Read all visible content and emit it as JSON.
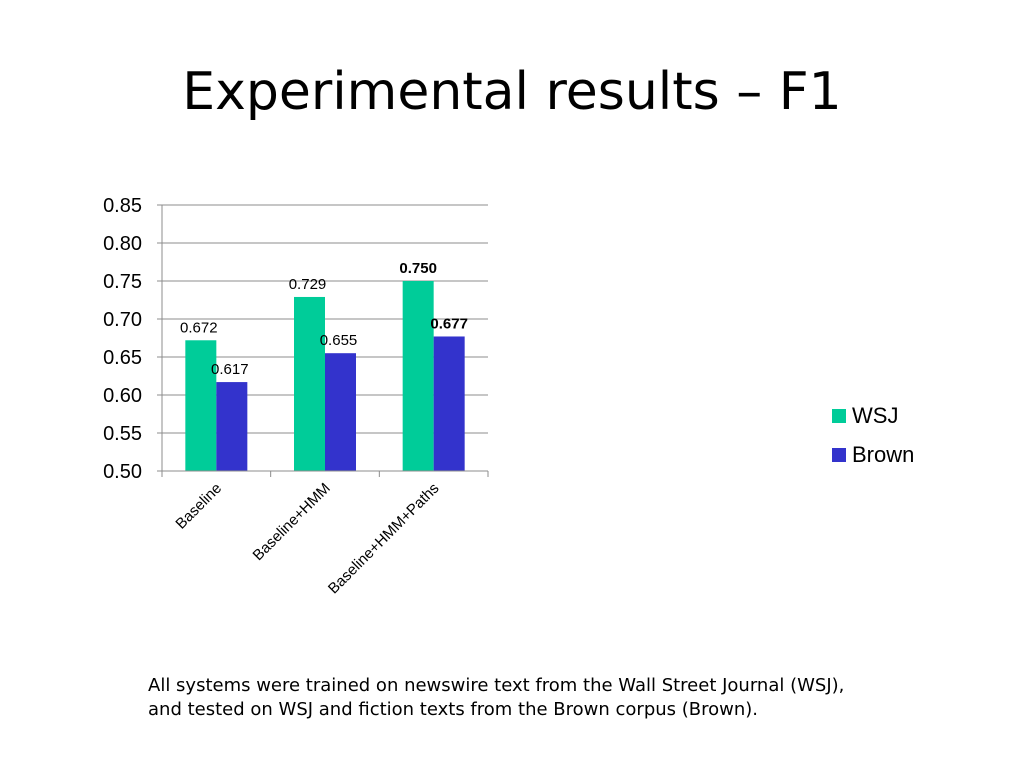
{
  "slide": {
    "title": "Experimental results – F1",
    "caption": "All systems were trained on newswire text from the Wall Street Journal (WSJ), and tested on WSJ and fiction texts from the Brown corpus (Brown)."
  },
  "chart_data": {
    "type": "bar",
    "title": "",
    "xlabel": "",
    "ylabel": "",
    "categories": [
      "Baseline",
      "Baseline+HMM",
      "Baseline+HMM+Paths"
    ],
    "series": [
      {
        "name": "WSJ",
        "color": "#00cc99",
        "values": [
          0.672,
          0.729,
          0.75
        ],
        "labels": [
          "0.672",
          "0.729",
          "0.750"
        ],
        "label_bold": [
          false,
          false,
          true
        ]
      },
      {
        "name": "Brown",
        "color": "#3333cc",
        "values": [
          0.617,
          0.655,
          0.677
        ],
        "labels": [
          "0.617",
          "0.655",
          "0.677"
        ],
        "label_bold": [
          false,
          false,
          true
        ]
      }
    ],
    "ylim": [
      0.5,
      0.85
    ],
    "yticks": [
      0.5,
      0.55,
      0.6,
      0.65,
      0.7,
      0.75,
      0.8,
      0.85
    ],
    "ytick_labels": [
      "0.50",
      "0.55",
      "0.60",
      "0.65",
      "0.70",
      "0.75",
      "0.80",
      "0.85"
    ],
    "grid": true,
    "legend": "right"
  }
}
